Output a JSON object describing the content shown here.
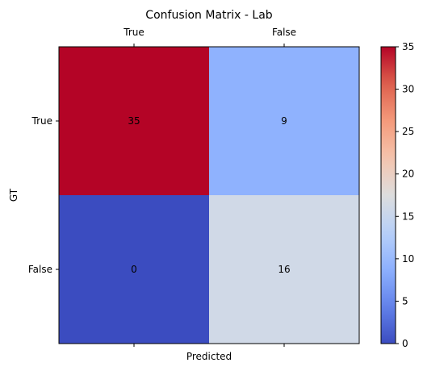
{
  "chart_data": {
    "type": "heatmap",
    "title": "Confusion Matrix - Lab",
    "xlabel": "Predicted",
    "ylabel": "GT",
    "x_categories": [
      "True",
      "False"
    ],
    "y_categories": [
      "True",
      "False"
    ],
    "values": [
      [
        35,
        9
      ],
      [
        0,
        16
      ]
    ],
    "colormap": "coolwarm",
    "colorbar": {
      "range": [
        0,
        35
      ],
      "ticks": [
        "0",
        "5",
        "10",
        "15",
        "20",
        "25",
        "30",
        "35"
      ]
    },
    "x_tick_position": "top"
  }
}
